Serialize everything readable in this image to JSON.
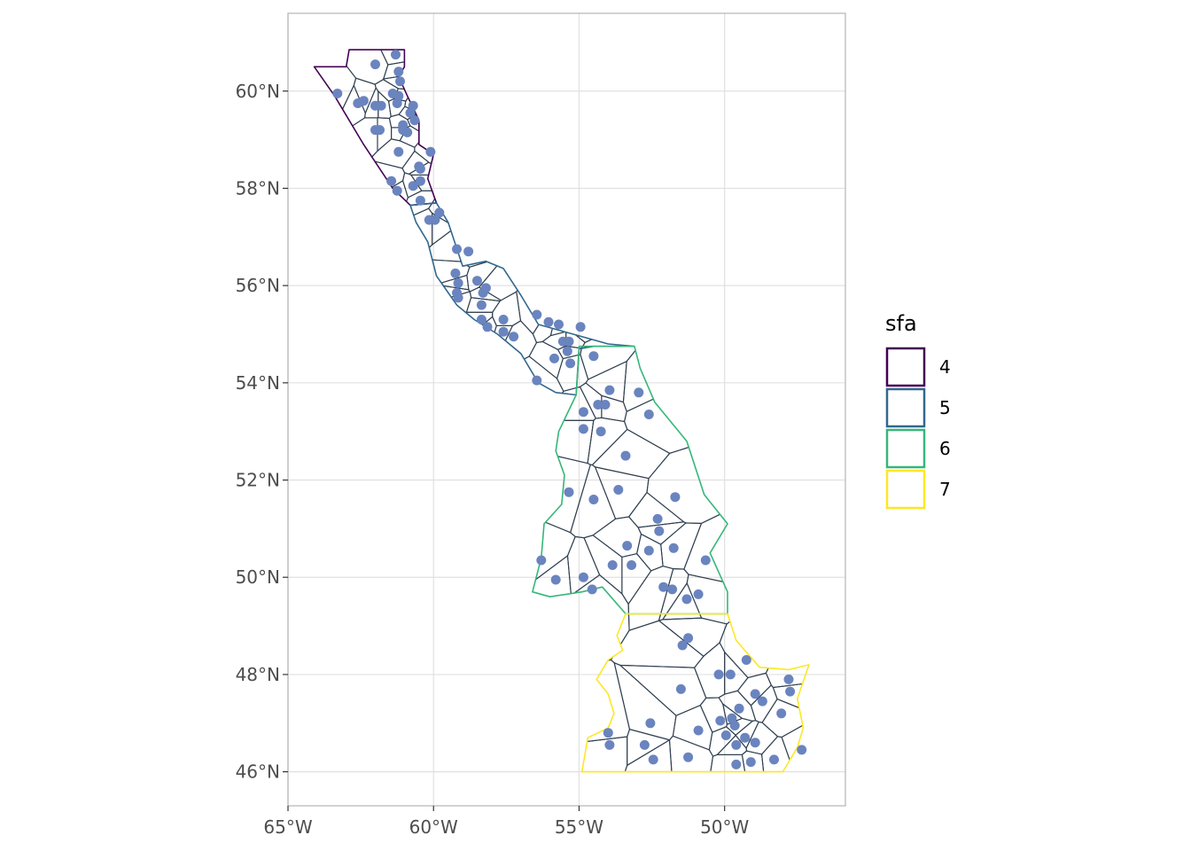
{
  "colors": {
    "sfa_4": "#440154",
    "sfa_5": "#31688e",
    "sfa_6": "#35b779",
    "sfa_7": "#fde725",
    "cell": "#2f3f4f",
    "point": "#6a84bf",
    "grid": "#e0e0e0",
    "panel_border": "#b3b3b3"
  },
  "axes": {
    "x_ticks": [
      {
        "value": -65,
        "label": "65°W"
      },
      {
        "value": -60,
        "label": "60°W"
      },
      {
        "value": -55,
        "label": "55°W"
      },
      {
        "value": -50,
        "label": "50°W"
      }
    ],
    "y_ticks": [
      {
        "value": 46,
        "label": "46°N"
      },
      {
        "value": 48,
        "label": "48°N"
      },
      {
        "value": 50,
        "label": "50°N"
      },
      {
        "value": 52,
        "label": "52°N"
      },
      {
        "value": 54,
        "label": "54°N"
      },
      {
        "value": 56,
        "label": "56°N"
      },
      {
        "value": 58,
        "label": "58°N"
      },
      {
        "value": 60,
        "label": "60°N"
      }
    ],
    "xlim": [
      -65.0,
      -45.85
    ],
    "ylim": [
      45.3,
      61.6
    ]
  },
  "legend": {
    "title": "sfa",
    "items": [
      {
        "label": "4",
        "color_key": "sfa_4"
      },
      {
        "label": "5",
        "color_key": "sfa_5"
      },
      {
        "label": "6",
        "color_key": "sfa_6"
      },
      {
        "label": "7",
        "color_key": "sfa_7"
      }
    ]
  },
  "regions": [
    {
      "sfa": "4",
      "outline": [
        [
          -64.1,
          60.5
        ],
        [
          -63.0,
          60.5
        ],
        [
          -62.9,
          60.85
        ],
        [
          -61.0,
          60.85
        ],
        [
          -61.0,
          60.5
        ],
        [
          -61.2,
          60.3
        ],
        [
          -60.9,
          59.9
        ],
        [
          -60.5,
          59.4
        ],
        [
          -60.5,
          58.9
        ],
        [
          -60.0,
          58.7
        ],
        [
          -60.2,
          58.2
        ],
        [
          -59.9,
          57.7
        ],
        [
          -60.8,
          57.65
        ],
        [
          -61.4,
          58.0
        ],
        [
          -62.4,
          58.9
        ],
        [
          -63.4,
          59.9
        ]
      ]
    },
    {
      "sfa": "5",
      "outline": [
        [
          -60.8,
          57.65
        ],
        [
          -59.9,
          57.7
        ],
        [
          -59.5,
          57.3
        ],
        [
          -59.0,
          56.4
        ],
        [
          -58.2,
          56.5
        ],
        [
          -57.6,
          56.35
        ],
        [
          -57.0,
          55.8
        ],
        [
          -56.4,
          55.2
        ],
        [
          -55.2,
          55.0
        ],
        [
          -54.0,
          54.8
        ],
        [
          -53.1,
          54.75
        ],
        [
          -54.5,
          54.75
        ],
        [
          -55.0,
          54.7
        ],
        [
          -55.1,
          53.75
        ],
        [
          -55.8,
          53.8
        ],
        [
          -56.4,
          54.0
        ],
        [
          -57.0,
          54.6
        ],
        [
          -57.8,
          55.0
        ],
        [
          -58.6,
          55.3
        ],
        [
          -59.2,
          55.6
        ],
        [
          -59.9,
          56.2
        ],
        [
          -60.2,
          56.9
        ],
        [
          -60.6,
          57.3
        ]
      ]
    },
    {
      "sfa": "6",
      "outline": [
        [
          -55.0,
          54.75
        ],
        [
          -53.1,
          54.75
        ],
        [
          -52.9,
          54.3
        ],
        [
          -52.4,
          53.6
        ],
        [
          -51.3,
          52.8
        ],
        [
          -50.7,
          51.7
        ],
        [
          -49.9,
          51.1
        ],
        [
          -50.5,
          50.5
        ],
        [
          -49.9,
          49.7
        ],
        [
          -49.9,
          49.25
        ],
        [
          -51.3,
          49.25
        ],
        [
          -53.4,
          49.25
        ],
        [
          -54.2,
          49.8
        ],
        [
          -54.9,
          49.7
        ],
        [
          -56.0,
          49.6
        ],
        [
          -56.6,
          49.7
        ],
        [
          -56.3,
          50.4
        ],
        [
          -56.2,
          51.1
        ],
        [
          -55.6,
          51.5
        ],
        [
          -55.5,
          52.1
        ],
        [
          -55.8,
          52.6
        ],
        [
          -55.7,
          53.0
        ],
        [
          -55.1,
          53.75
        ],
        [
          -55.0,
          54.75
        ]
      ]
    },
    {
      "sfa": "7",
      "outline": [
        [
          -53.4,
          49.25
        ],
        [
          -49.9,
          49.25
        ],
        [
          -49.6,
          48.7
        ],
        [
          -48.8,
          48.15
        ],
        [
          -47.8,
          48.1
        ],
        [
          -47.1,
          48.2
        ],
        [
          -47.5,
          47.5
        ],
        [
          -47.3,
          46.9
        ],
        [
          -47.5,
          46.5
        ],
        [
          -47.7,
          46.3
        ],
        [
          -48.0,
          46.0
        ],
        [
          -54.9,
          46.0
        ],
        [
          -54.7,
          46.7
        ],
        [
          -54.0,
          46.9
        ],
        [
          -53.8,
          47.2
        ],
        [
          -54.0,
          47.6
        ],
        [
          -54.4,
          47.9
        ],
        [
          -54.0,
          48.3
        ],
        [
          -53.5,
          48.5
        ],
        [
          -53.7,
          48.8
        ],
        [
          -53.4,
          49.25
        ]
      ]
    }
  ],
  "points": [
    [
      -61.3,
      60.75
    ],
    [
      -62.0,
      60.55
    ],
    [
      -61.2,
      60.4
    ],
    [
      -61.15,
      60.2
    ],
    [
      -63.3,
      59.95
    ],
    [
      -62.4,
      59.8
    ],
    [
      -62.6,
      59.75
    ],
    [
      -61.4,
      59.95
    ],
    [
      -61.2,
      59.9
    ],
    [
      -61.25,
      59.75
    ],
    [
      -62.0,
      59.7
    ],
    [
      -61.8,
      59.7
    ],
    [
      -60.7,
      59.7
    ],
    [
      -60.8,
      59.55
    ],
    [
      -60.65,
      59.4
    ],
    [
      -61.05,
      59.3
    ],
    [
      -60.9,
      59.15
    ],
    [
      -61.05,
      59.2
    ],
    [
      -62.0,
      59.2
    ],
    [
      -61.85,
      59.2
    ],
    [
      -61.2,
      58.75
    ],
    [
      -60.1,
      58.75
    ],
    [
      -60.5,
      58.45
    ],
    [
      -60.45,
      58.4
    ],
    [
      -61.45,
      58.15
    ],
    [
      -60.45,
      58.15
    ],
    [
      -60.7,
      58.05
    ],
    [
      -61.25,
      57.95
    ],
    [
      -60.45,
      57.75
    ],
    [
      -59.8,
      57.5
    ],
    [
      -60.15,
      57.35
    ],
    [
      -59.95,
      57.35
    ],
    [
      -59.2,
      56.75
    ],
    [
      -58.8,
      56.7
    ],
    [
      -59.25,
      56.25
    ],
    [
      -59.15,
      56.05
    ],
    [
      -58.5,
      56.1
    ],
    [
      -58.2,
      55.95
    ],
    [
      -59.2,
      55.85
    ],
    [
      -58.3,
      55.85
    ],
    [
      -59.15,
      55.75
    ],
    [
      -58.35,
      55.6
    ],
    [
      -58.35,
      55.3
    ],
    [
      -57.6,
      55.3
    ],
    [
      -58.15,
      55.15
    ],
    [
      -57.6,
      55.05
    ],
    [
      -57.25,
      54.95
    ],
    [
      -56.45,
      55.4
    ],
    [
      -56.05,
      55.25
    ],
    [
      -55.7,
      55.2
    ],
    [
      -54.95,
      55.15
    ],
    [
      -55.55,
      54.85
    ],
    [
      -55.35,
      54.85
    ],
    [
      -55.4,
      54.65
    ],
    [
      -55.85,
      54.5
    ],
    [
      -55.3,
      54.4
    ],
    [
      -54.5,
      54.55
    ],
    [
      -56.45,
      54.05
    ],
    [
      -53.95,
      53.85
    ],
    [
      -52.95,
      53.8
    ],
    [
      -54.35,
      53.55
    ],
    [
      -54.1,
      53.55
    ],
    [
      -54.85,
      53.4
    ],
    [
      -52.6,
      53.35
    ],
    [
      -54.85,
      53.05
    ],
    [
      -54.25,
      53.0
    ],
    [
      -53.4,
      52.5
    ],
    [
      -53.65,
      51.8
    ],
    [
      -55.35,
      51.75
    ],
    [
      -54.5,
      51.6
    ],
    [
      -51.7,
      51.65
    ],
    [
      -52.3,
      51.2
    ],
    [
      -52.25,
      50.95
    ],
    [
      -53.35,
      50.65
    ],
    [
      -52.6,
      50.55
    ],
    [
      -51.75,
      50.6
    ],
    [
      -50.65,
      50.35
    ],
    [
      -56.3,
      50.35
    ],
    [
      -53.85,
      50.25
    ],
    [
      -53.2,
      50.25
    ],
    [
      -54.85,
      50.0
    ],
    [
      -55.8,
      49.95
    ],
    [
      -52.1,
      49.8
    ],
    [
      -51.8,
      49.75
    ],
    [
      -51.3,
      49.55
    ],
    [
      -50.9,
      49.65
    ],
    [
      -54.55,
      49.75
    ],
    [
      -51.25,
      48.75
    ],
    [
      -51.45,
      48.6
    ],
    [
      -49.25,
      48.3
    ],
    [
      -50.2,
      48.0
    ],
    [
      -49.8,
      48.0
    ],
    [
      -47.8,
      47.9
    ],
    [
      -47.75,
      47.65
    ],
    [
      -51.5,
      47.7
    ],
    [
      -48.95,
      47.6
    ],
    [
      -48.7,
      47.45
    ],
    [
      -49.5,
      47.3
    ],
    [
      -48.05,
      47.2
    ],
    [
      -50.15,
      47.05
    ],
    [
      -49.75,
      47.1
    ],
    [
      -49.65,
      46.95
    ],
    [
      -52.55,
      47.0
    ],
    [
      -50.9,
      46.85
    ],
    [
      -54.0,
      46.8
    ],
    [
      -49.95,
      46.75
    ],
    [
      -49.3,
      46.7
    ],
    [
      -48.95,
      46.6
    ],
    [
      -49.6,
      46.55
    ],
    [
      -52.75,
      46.55
    ],
    [
      -53.95,
      46.55
    ],
    [
      -47.35,
      46.45
    ],
    [
      -52.45,
      46.25
    ],
    [
      -51.25,
      46.3
    ],
    [
      -49.1,
      46.2
    ],
    [
      -48.3,
      46.25
    ],
    [
      -49.6,
      46.15
    ]
  ]
}
